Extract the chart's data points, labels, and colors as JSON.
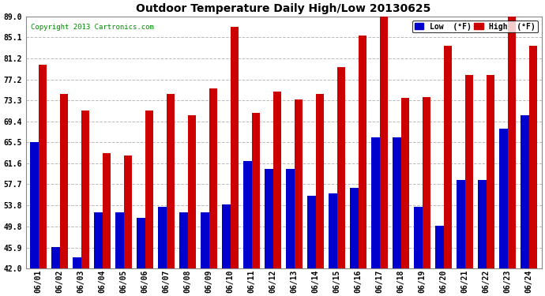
{
  "title": "Outdoor Temperature Daily High/Low 20130625",
  "copyright": "Copyright 2013 Cartronics.com",
  "dates": [
    "06/01",
    "06/02",
    "06/03",
    "06/04",
    "06/05",
    "06/06",
    "06/07",
    "06/08",
    "06/09",
    "06/10",
    "06/11",
    "06/12",
    "06/13",
    "06/14",
    "06/15",
    "06/16",
    "06/17",
    "06/18",
    "06/19",
    "06/20",
    "06/21",
    "06/22",
    "06/23",
    "06/24"
  ],
  "highs": [
    80.0,
    74.5,
    71.5,
    63.5,
    63.0,
    71.5,
    74.5,
    70.5,
    75.5,
    87.0,
    71.0,
    75.0,
    73.5,
    74.5,
    79.5,
    85.5,
    89.0,
    73.8,
    74.0,
    83.5,
    78.0,
    78.0,
    89.0,
    83.5
  ],
  "lows": [
    65.5,
    46.0,
    44.0,
    52.5,
    52.5,
    51.5,
    53.5,
    52.5,
    52.5,
    54.0,
    62.0,
    60.5,
    60.5,
    55.5,
    56.0,
    57.0,
    66.5,
    66.5,
    53.5,
    50.0,
    58.5,
    58.5,
    68.0,
    70.5
  ],
  "low_color": "#0000cc",
  "high_color": "#cc0000",
  "bg_color": "#ffffff",
  "grid_color": "#bbbbbb",
  "yticks": [
    42.0,
    45.9,
    49.8,
    53.8,
    57.7,
    61.6,
    65.5,
    69.4,
    73.3,
    77.2,
    81.2,
    85.1,
    89.0
  ],
  "ymin": 42.0,
  "ymax": 89.0,
  "legend_low_label": "Low  (°F)",
  "legend_high_label": "High  (°F)",
  "bar_width": 0.38
}
